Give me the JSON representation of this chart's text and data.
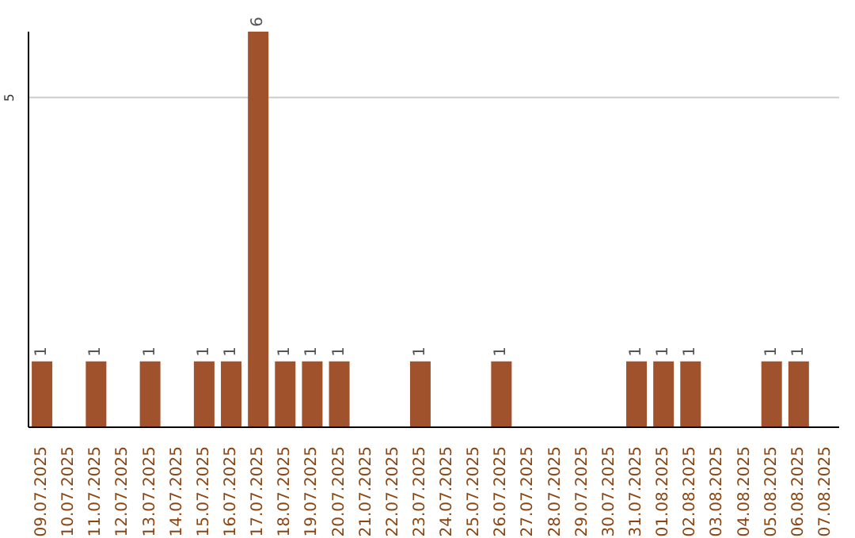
{
  "chart_data": {
    "type": "bar",
    "categories": [
      "09.07.2025",
      "10.07.2025",
      "11.07.2025",
      "12.07.2025",
      "13.07.2025",
      "14.07.2025",
      "15.07.2025",
      "16.07.2025",
      "17.07.2025",
      "18.07.2025",
      "19.07.2025",
      "20.07.2025",
      "21.07.2025",
      "22.07.2025",
      "23.07.2025",
      "24.07.2025",
      "25.07.2025",
      "26.07.2025",
      "27.07.2025",
      "28.07.2025",
      "29.07.2025",
      "30.07.2025",
      "31.07.2025",
      "01.08.2025",
      "02.08.2025",
      "03.08.2025",
      "04.08.2025",
      "05.08.2025",
      "06.08.2025",
      "07.08.2025"
    ],
    "values": [
      1,
      0,
      1,
      0,
      1,
      0,
      1,
      1,
      6,
      1,
      1,
      1,
      0,
      0,
      1,
      0,
      0,
      1,
      0,
      0,
      0,
      0,
      1,
      1,
      1,
      0,
      0,
      1,
      1,
      0
    ],
    "value_labels": [
      "1",
      null,
      "1",
      null,
      "1",
      null,
      "1",
      "1",
      "6",
      "1",
      "1",
      "1",
      null,
      null,
      "1",
      null,
      null,
      "1",
      null,
      null,
      null,
      null,
      "1",
      "1",
      "1",
      null,
      null,
      "1",
      "1",
      null
    ],
    "color": "#a0522d",
    "ylim": [
      0,
      6
    ],
    "yticks": [
      5
    ],
    "grid": "y"
  }
}
